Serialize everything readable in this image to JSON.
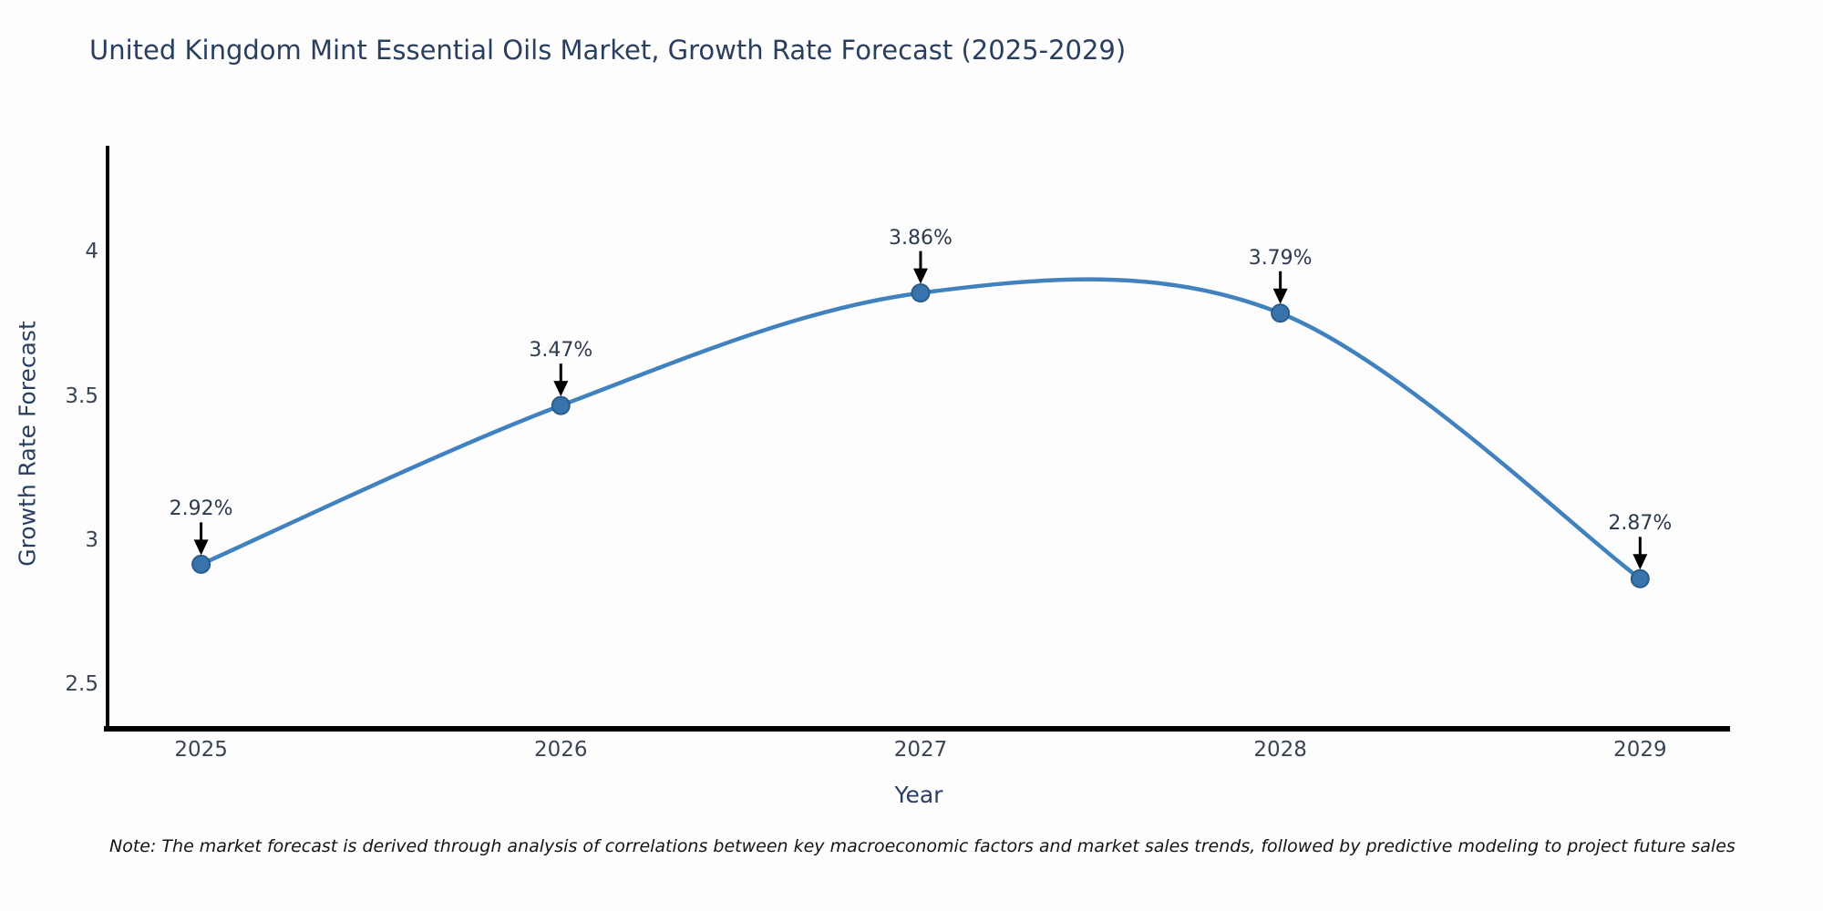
{
  "chart_data": {
    "type": "line",
    "title": "United Kingdom Mint Essential Oils Market, Growth Rate Forecast (2025-2029)",
    "xlabel": "Year",
    "ylabel": "Growth Rate Forecast",
    "x": [
      2025,
      2026,
      2027,
      2028,
      2029
    ],
    "values": [
      2.92,
      3.47,
      3.86,
      3.79,
      2.87
    ],
    "point_labels": [
      "2.92%",
      "3.47%",
      "3.86%",
      "3.79%",
      "2.87%"
    ],
    "x_tick_labels": [
      "2025",
      "2026",
      "2027",
      "2028",
      "2029"
    ],
    "x_tick_values": [
      2025,
      2026,
      2027,
      2028,
      2029
    ],
    "y_tick_labels": [
      "4",
      "3.5",
      "3",
      "2.5"
    ],
    "y_tick_values": [
      4,
      3.5,
      3,
      2.5
    ],
    "xlim": [
      2024.74,
      2029.25
    ],
    "ylim": [
      2.35,
      4.37
    ],
    "grid": false,
    "legend": "none",
    "curve": "smooth",
    "line_color": "#4181bd",
    "marker_color": "#3873ac",
    "marker_edge_color": "#2b5c8a",
    "axis_color": "#000000",
    "annotation_arrow_color": "#000000",
    "title_color": "#2a3f5f"
  },
  "note": {
    "text": "Note: The market forecast is derived through analysis of correlations between key macroeconomic factors and market sales trends, followed by predictive modeling to project future sales"
  }
}
